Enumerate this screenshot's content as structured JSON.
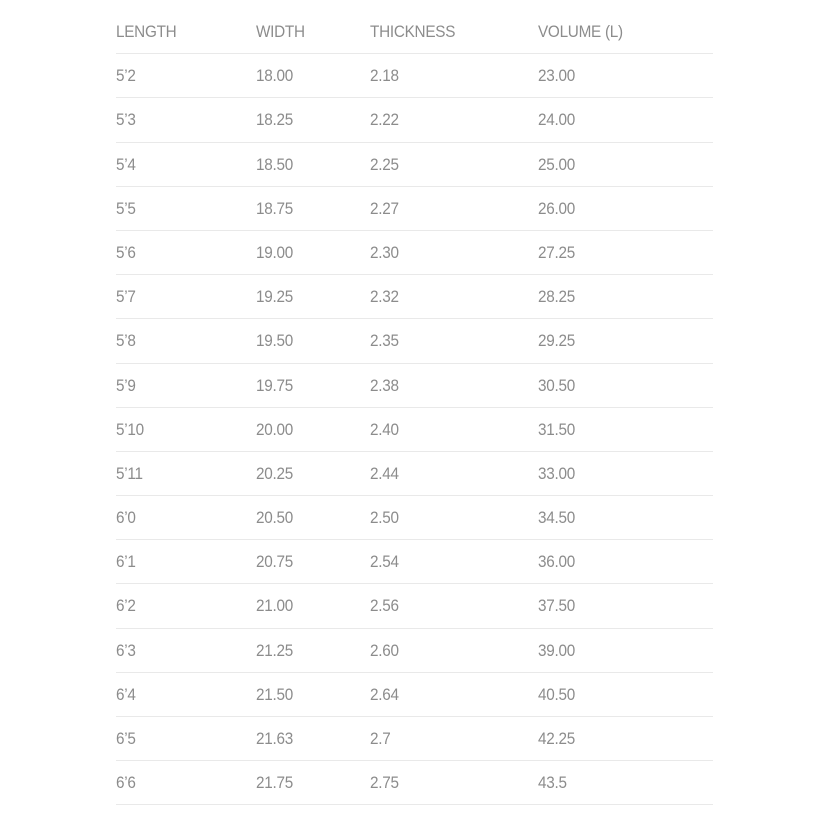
{
  "table": {
    "headers": [
      "LENGTH",
      "WIDTH",
      "THICKNESS",
      "VOLUME (L)"
    ],
    "rows": [
      [
        "5’2",
        "18.00",
        "2.18",
        "23.00"
      ],
      [
        "5’3",
        "18.25",
        "2.22",
        "24.00"
      ],
      [
        "5’4",
        "18.50",
        "2.25",
        "25.00"
      ],
      [
        "5’5",
        "18.75",
        "2.27",
        "26.00"
      ],
      [
        "5’6",
        "19.00",
        "2.30",
        "27.25"
      ],
      [
        "5’7",
        "19.25",
        "2.32",
        "28.25"
      ],
      [
        "5’8",
        "19.50",
        "2.35",
        "29.25"
      ],
      [
        "5’9",
        "19.75",
        "2.38",
        "30.50"
      ],
      [
        "5’10",
        "20.00",
        "2.40",
        "31.50"
      ],
      [
        "5’11",
        "20.25",
        "2.44",
        "33.00"
      ],
      [
        "6’0",
        "20.50",
        "2.50",
        "34.50"
      ],
      [
        "6’1",
        "20.75",
        "2.54",
        "36.00"
      ],
      [
        "6’2",
        "21.00",
        "2.56",
        "37.50"
      ],
      [
        "6’3",
        "21.25",
        "2.60",
        "39.00"
      ],
      [
        "6’4",
        "21.50",
        "2.64",
        "40.50"
      ],
      [
        "6’5",
        "21.63",
        "2.7",
        "42.25"
      ],
      [
        "6’6",
        "21.75",
        "2.75",
        "43.5"
      ]
    ]
  }
}
